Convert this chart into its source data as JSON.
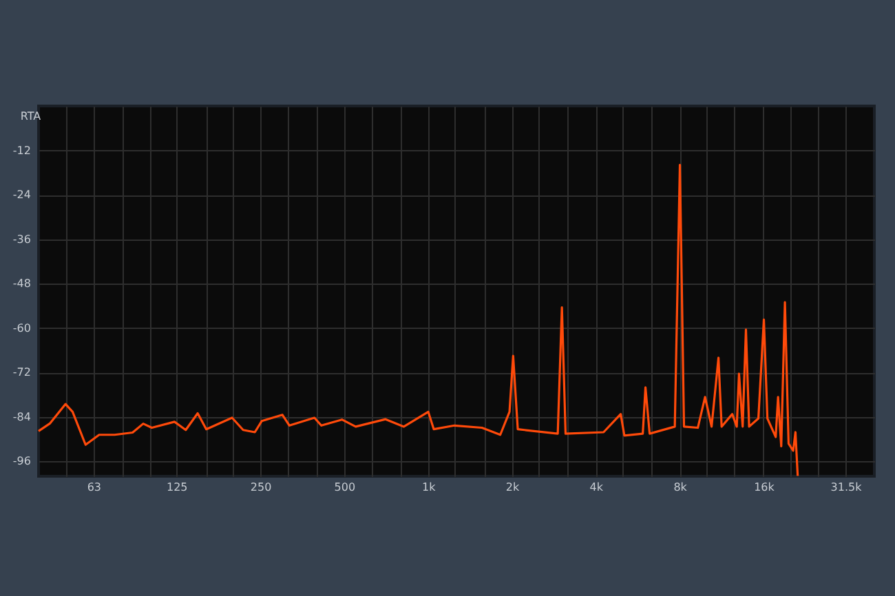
{
  "chart_data": {
    "type": "line",
    "title": "RTA",
    "log": "x",
    "grid": true,
    "marker": "none",
    "line_style": "solid",
    "xlim": [
      40,
      40000
    ],
    "ylim": [
      -100,
      0
    ],
    "xticks": [
      {
        "value": 50,
        "label": null
      },
      {
        "value": 63,
        "label": "63"
      },
      {
        "value": 80,
        "label": null
      },
      {
        "value": 100,
        "label": null
      },
      {
        "value": 125,
        "label": "125"
      },
      {
        "value": 160,
        "label": null
      },
      {
        "value": 200,
        "label": null
      },
      {
        "value": 250,
        "label": "250"
      },
      {
        "value": 315,
        "label": null
      },
      {
        "value": 400,
        "label": null
      },
      {
        "value": 500,
        "label": "500"
      },
      {
        "value": 630,
        "label": null
      },
      {
        "value": 800,
        "label": null
      },
      {
        "value": 1000,
        "label": "1k"
      },
      {
        "value": 1250,
        "label": null
      },
      {
        "value": 1600,
        "label": null
      },
      {
        "value": 2000,
        "label": "2k"
      },
      {
        "value": 2500,
        "label": null
      },
      {
        "value": 3150,
        "label": null
      },
      {
        "value": 4000,
        "label": "4k"
      },
      {
        "value": 5000,
        "label": null
      },
      {
        "value": 6300,
        "label": null
      },
      {
        "value": 8000,
        "label": "8k"
      },
      {
        "value": 10000,
        "label": null
      },
      {
        "value": 12500,
        "label": null
      },
      {
        "value": 16000,
        "label": "16k"
      },
      {
        "value": 20000,
        "label": null
      },
      {
        "value": 25000,
        "label": null
      },
      {
        "value": 31500,
        "label": "31.5k"
      }
    ],
    "yticks": [
      -12,
      -24,
      -36,
      -48,
      -60,
      -72,
      -84,
      -96
    ],
    "series": [
      {
        "color": "#ff4a0a",
        "x": [
          40,
          44,
          50,
          53,
          59,
          66,
          75,
          87,
          95,
          102,
          123,
          135,
          149,
          160,
          198,
          217,
          239,
          253,
          300,
          318,
          391,
          414,
          491,
          550,
          704,
          819,
          1002,
          1049,
          1244,
          1562,
          1817,
          1961,
          2021,
          2100,
          2922,
          3024,
          3117,
          4267,
          4916,
          5066,
          5900,
          6033,
          6245,
          7688,
          8018,
          8295,
          9300,
          9873,
          10420,
          11030,
          11320,
          12360,
          12830,
          13070,
          13470,
          13840,
          14210,
          15340,
          16050,
          16530,
          17700,
          18050,
          18530,
          19100,
          19690,
          20450,
          20840,
          21230
        ],
        "values": [
          -87.8,
          -85.7,
          -80.5,
          -82.6,
          -91.5,
          -88.8,
          -88.8,
          -88.2,
          -85.8,
          -86.9,
          -85.3,
          -87.5,
          -83,
          -87.3,
          -84.2,
          -87.5,
          -88.1,
          -85.1,
          -83.4,
          -86.3,
          -84.2,
          -86.3,
          -84.7,
          -86.6,
          -84.6,
          -86.6,
          -82.6,
          -87.3,
          -86.3,
          -86.9,
          -88.8,
          -82.6,
          -67.5,
          -87.3,
          -88.5,
          -54.4,
          -88.5,
          -88.1,
          -83.2,
          -89,
          -88.5,
          -76,
          -88.5,
          -86.6,
          -15.9,
          -86.6,
          -86.9,
          -78.6,
          -86.6,
          -68,
          -86.6,
          -83.2,
          -86.6,
          -72.3,
          -86.6,
          -60.4,
          -86.6,
          -84.4,
          -57.7,
          -84.4,
          -89.4,
          -78.6,
          -91.9,
          -53,
          -91.2,
          -93.1,
          -88.1,
          -99.9
        ]
      }
    ]
  }
}
